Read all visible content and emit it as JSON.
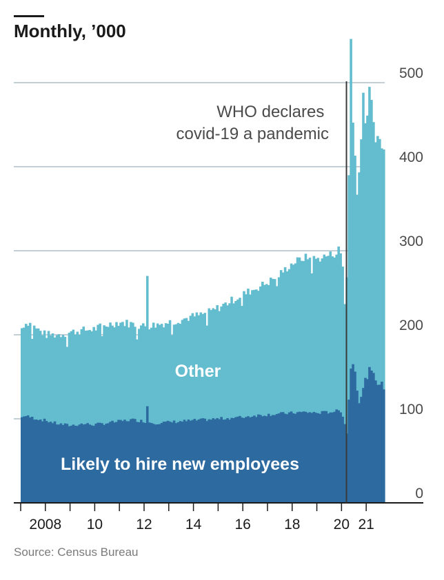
{
  "header": {
    "title": "Monthly, ’000"
  },
  "footer": {
    "source": "Source: Census Bureau"
  },
  "colors": {
    "other": "#63bdcf",
    "likely": "#2d6aa0",
    "grid": "#aebfc9",
    "axis": "#1a1a1a",
    "event_line": "#3a3a3a"
  },
  "chart_data": {
    "type": "area",
    "stacked": true,
    "title": "Monthly, ’000",
    "ylim": [
      0,
      500
    ],
    "yticks": [
      0,
      100,
      200,
      300,
      400,
      500
    ],
    "ytick_labels": [
      "0",
      "100",
      "200",
      "300",
      "400",
      "500"
    ],
    "y_axis_side": "right",
    "grid": "horizontal",
    "x_range": [
      2007.0,
      2021.75
    ],
    "xtick_labels": [
      {
        "x": 2008.0,
        "label": "2008"
      },
      {
        "x": 2010.0,
        "label": "10"
      },
      {
        "x": 2012.0,
        "label": "12"
      },
      {
        "x": 2014.0,
        "label": "14"
      },
      {
        "x": 2016.0,
        "label": "16"
      },
      {
        "x": 2018.0,
        "label": "18"
      },
      {
        "x": 2020.0,
        "label": "20"
      },
      {
        "x": 2021.0,
        "label": "21"
      }
    ],
    "year_tick_positions": [
      2007,
      2008,
      2009,
      2010,
      2011,
      2012,
      2013,
      2014,
      2015,
      2016,
      2017,
      2018,
      2019,
      2020,
      2021
    ],
    "series_labels": {
      "other": "Other",
      "likely": "Likely to hire new employees"
    },
    "annotation": {
      "x": 2020.2,
      "text": [
        "WHO declares",
        "covid-19 a pandemic"
      ]
    },
    "anchors_likely": [
      [
        2007.0,
        100
      ],
      [
        2007.1,
        104
      ],
      [
        2007.5,
        101
      ],
      [
        2008.0,
        98
      ],
      [
        2008.5,
        94
      ],
      [
        2009.0,
        92
      ],
      [
        2009.5,
        94
      ],
      [
        2010.0,
        93
      ],
      [
        2010.5,
        95
      ],
      [
        2011.0,
        97
      ],
      [
        2011.5,
        99
      ],
      [
        2012.0,
        97
      ],
      [
        2012.5,
        95
      ],
      [
        2013.0,
        96
      ],
      [
        2013.5,
        97
      ],
      [
        2014.0,
        98
      ],
      [
        2014.5,
        99
      ],
      [
        2015.0,
        100
      ],
      [
        2015.5,
        101
      ],
      [
        2016.0,
        102
      ],
      [
        2016.5,
        104
      ],
      [
        2017.0,
        105
      ],
      [
        2017.5,
        106
      ],
      [
        2018.0,
        107
      ],
      [
        2018.5,
        108
      ],
      [
        2019.0,
        107
      ],
      [
        2019.5,
        108
      ],
      [
        2019.95,
        110
      ],
      [
        2020.1,
        100
      ],
      [
        2020.2,
        78
      ],
      [
        2020.3,
        130
      ],
      [
        2020.42,
        175
      ],
      [
        2020.55,
        155
      ],
      [
        2020.7,
        122
      ],
      [
        2020.85,
        132
      ],
      [
        2021.0,
        150
      ],
      [
        2021.15,
        158
      ],
      [
        2021.3,
        150
      ],
      [
        2021.45,
        145
      ],
      [
        2021.6,
        140
      ],
      [
        2021.75,
        138
      ]
    ],
    "anchors_total": [
      [
        2007.0,
        205
      ],
      [
        2007.1,
        212
      ],
      [
        2007.3,
        215
      ],
      [
        2007.6,
        208
      ],
      [
        2007.9,
        202
      ],
      [
        2008.0,
        200
      ],
      [
        2008.5,
        200
      ],
      [
        2009.0,
        203
      ],
      [
        2009.5,
        205
      ],
      [
        2010.0,
        207
      ],
      [
        2010.5,
        212
      ],
      [
        2011.0,
        215
      ],
      [
        2011.5,
        213
      ],
      [
        2012.0,
        210
      ],
      [
        2012.5,
        212
      ],
      [
        2013.0,
        215
      ],
      [
        2013.5,
        218
      ],
      [
        2014.0,
        222
      ],
      [
        2014.5,
        225
      ],
      [
        2015.0,
        232
      ],
      [
        2015.5,
        240
      ],
      [
        2016.0,
        248
      ],
      [
        2016.5,
        255
      ],
      [
        2017.0,
        262
      ],
      [
        2017.5,
        272
      ],
      [
        2018.0,
        285
      ],
      [
        2018.5,
        292
      ],
      [
        2019.0,
        290
      ],
      [
        2019.5,
        295
      ],
      [
        2019.95,
        298
      ],
      [
        2020.05,
        280
      ],
      [
        2020.12,
        235
      ],
      [
        2020.2,
        262
      ],
      [
        2020.3,
        400
      ],
      [
        2020.38,
        470
      ],
      [
        2020.47,
        450
      ],
      [
        2020.55,
        420
      ],
      [
        2020.65,
        350
      ],
      [
        2020.75,
        420
      ],
      [
        2020.85,
        470
      ],
      [
        2020.95,
        440
      ],
      [
        2021.05,
        470
      ],
      [
        2021.15,
        490
      ],
      [
        2021.25,
        460
      ],
      [
        2021.35,
        440
      ],
      [
        2021.5,
        432
      ],
      [
        2021.6,
        428
      ],
      [
        2021.75,
        415
      ]
    ],
    "spikes_total": [
      [
        2012.1,
        270
      ],
      [
        2019.85,
        305
      ],
      [
        2020.41,
        552
      ],
      [
        2020.9,
        488
      ],
      [
        2021.1,
        495
      ]
    ],
    "spikes_likely": [
      [
        2012.1,
        115
      ]
    ]
  }
}
